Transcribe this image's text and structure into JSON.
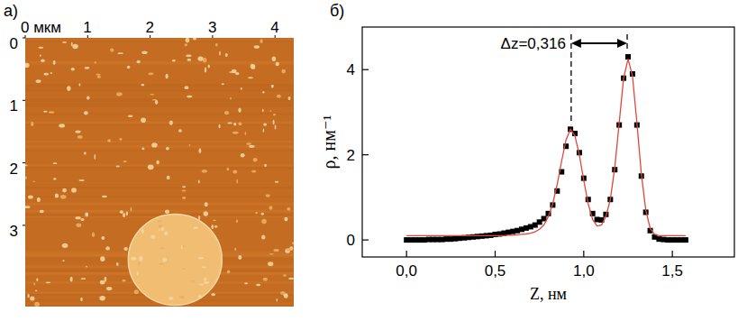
{
  "chart_data": [
    {
      "type": "image",
      "panel": "а)",
      "color": "#c46c22",
      "xlim": [
        0,
        4.3
      ],
      "ylim": [
        0,
        4.3
      ],
      "xticks": [
        {
          "value": 0,
          "label": "0 мкм"
        },
        1,
        2,
        3,
        4
      ],
      "yticks": [
        0,
        1,
        2,
        3
      ],
      "island": {
        "x": 2.4,
        "y": 3.55,
        "r": 0.75
      }
    },
    {
      "type": "scatter",
      "panel": "б)",
      "x_label": "Z, нм",
      "y_label": "ρ, нм⁻¹",
      "xlim": [
        -0.25,
        1.85
      ],
      "ylim": [
        -0.4,
        5
      ],
      "xticks": [
        {
          "value": 0,
          "label": "0,0"
        },
        {
          "value": 0.5,
          "label": "0,5"
        },
        {
          "value": 1,
          "label": "1,0"
        },
        {
          "value": 1.5,
          "label": "1,5"
        }
      ],
      "yticks": [
        0,
        2,
        4
      ],
      "x": [
        0,
        0.025,
        0.05,
        0.075,
        0.1,
        0.125,
        0.15,
        0.175,
        0.2,
        0.225,
        0.25,
        0.275,
        0.3,
        0.325,
        0.35,
        0.375,
        0.4,
        0.425,
        0.45,
        0.475,
        0.5,
        0.525,
        0.55,
        0.575,
        0.6,
        0.625,
        0.65,
        0.675,
        0.7,
        0.725,
        0.75,
        0.775,
        0.8,
        0.825,
        0.85,
        0.875,
        0.9,
        0.925,
        0.95,
        0.975,
        1,
        1.025,
        1.05,
        1.075,
        1.1,
        1.125,
        1.15,
        1.175,
        1.2,
        1.225,
        1.25,
        1.275,
        1.3,
        1.325,
        1.35,
        1.375,
        1.4,
        1.425,
        1.45,
        1.475,
        1.5,
        1.525,
        1.55,
        1.575
      ],
      "series": [
        {
          "type": "scatter",
          "marker": "square",
          "color": "#000000",
          "values": [
            0,
            0,
            0,
            0,
            0,
            0.01,
            0.01,
            0.01,
            0.01,
            0.02,
            0.02,
            0.03,
            0.04,
            0.05,
            0.06,
            0.07,
            0.08,
            0.09,
            0.1,
            0.11,
            0.13,
            0.14,
            0.16,
            0.18,
            0.2,
            0.22,
            0.25,
            0.28,
            0.31,
            0.35,
            0.42,
            0.5,
            0.62,
            0.82,
            1.15,
            1.6,
            2.2,
            2.6,
            2.5,
            2.05,
            1.45,
            0.95,
            0.62,
            0.48,
            0.47,
            0.6,
            0.95,
            1.65,
            2.7,
            3.8,
            4.3,
            3.9,
            2.7,
            1.5,
            0.65,
            0.22,
            0.07,
            0.02,
            0.01,
            0,
            0,
            0,
            0,
            0
          ]
        },
        {
          "type": "line",
          "line_style": "solid",
          "color": "#e0473c",
          "values": [
            0.1,
            0.1,
            0.1,
            0.1,
            0.1,
            0.1,
            0.1,
            0.1,
            0.1,
            0.1,
            0.1,
            0.1,
            0.1,
            0.1,
            0.1,
            0.1,
            0.1,
            0.1,
            0.1,
            0.1,
            0.1,
            0.1,
            0.1,
            0.11,
            0.11,
            0.12,
            0.13,
            0.14,
            0.16,
            0.19,
            0.25,
            0.35,
            0.55,
            0.85,
            1.3,
            1.85,
            2.35,
            2.6,
            2.45,
            2.0,
            1.4,
            0.85,
            0.48,
            0.33,
            0.35,
            0.55,
            0.95,
            1.7,
            2.75,
            3.8,
            4.25,
            3.85,
            2.75,
            1.55,
            0.7,
            0.27,
            0.13,
            0.1,
            0.1,
            0.1,
            0.1,
            0.1,
            0.1,
            0.1
          ]
        }
      ],
      "annotations": [
        {
          "text": "Δz=0,316",
          "x": [
            0.929,
            1.245
          ]
        }
      ]
    }
  ]
}
